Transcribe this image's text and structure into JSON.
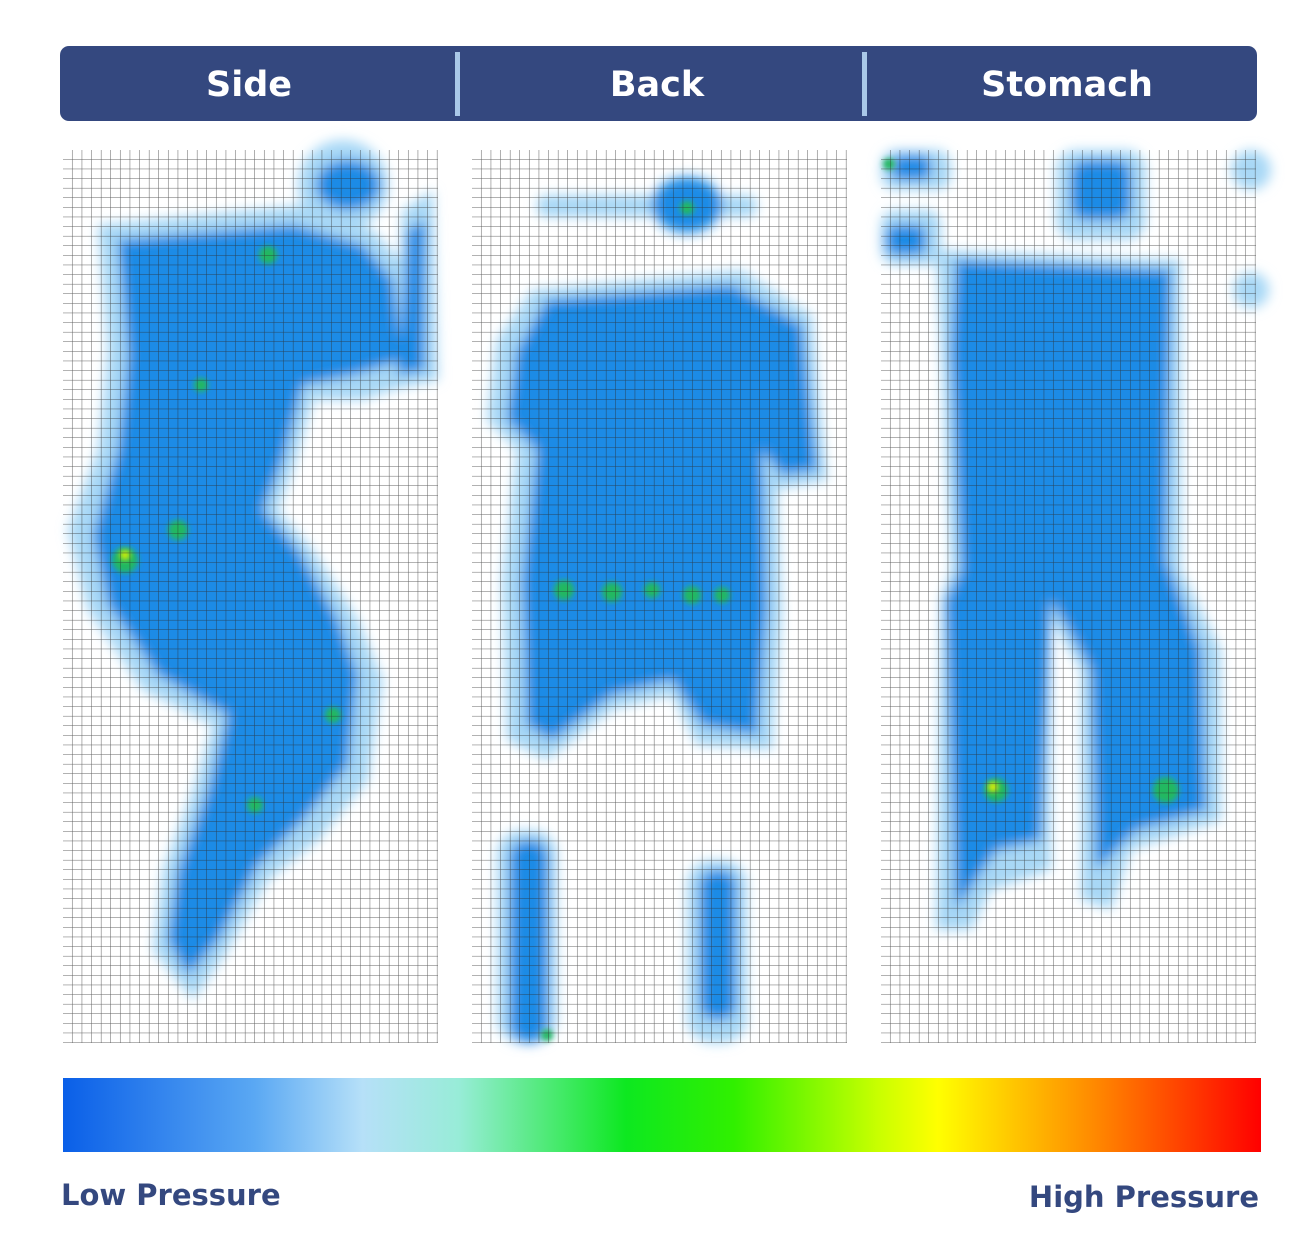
{
  "header": {
    "tabs": [
      "Side",
      "Back",
      "Stomach"
    ]
  },
  "legend": {
    "low": "Low Pressure",
    "high": "High Pressure"
  }
}
